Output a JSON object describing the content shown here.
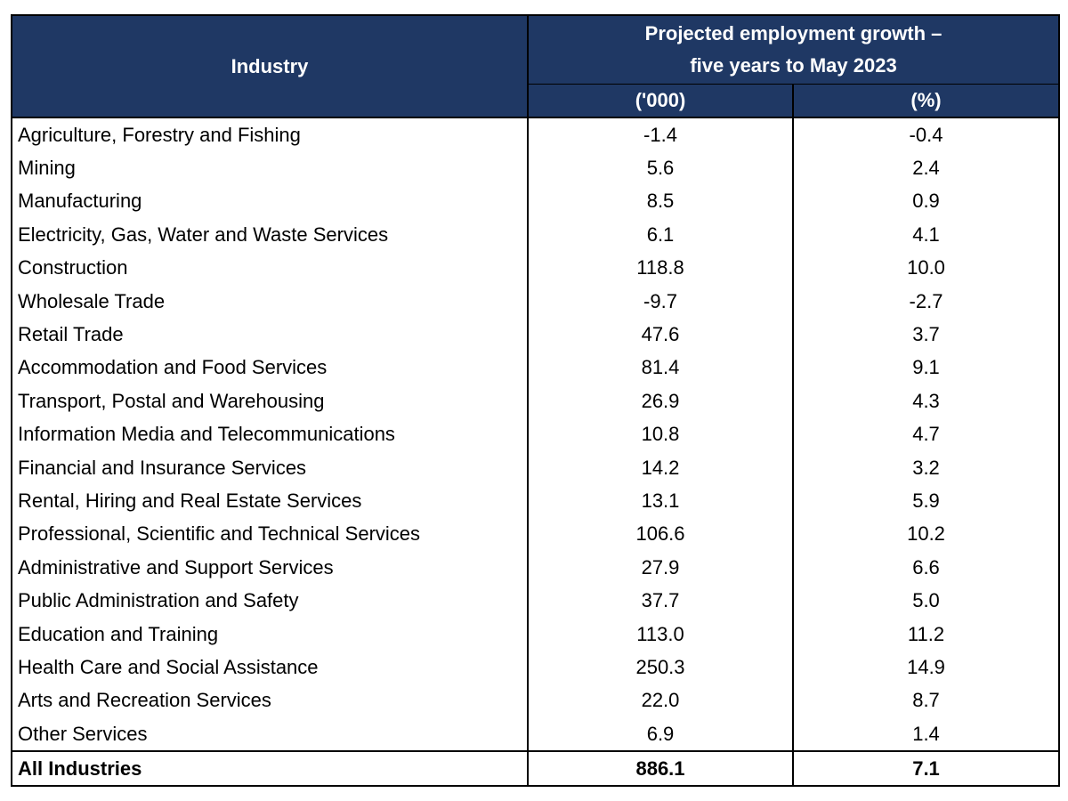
{
  "header": {
    "industry": "Industry",
    "group_line1": "Projected employment growth –",
    "group_line2": "five years to May 2023",
    "unit_thousands": "('000)",
    "unit_percent": "(%)"
  },
  "rows": [
    {
      "industry": "Agriculture, Forestry and Fishing",
      "thousands": "-1.4",
      "percent": "-0.4"
    },
    {
      "industry": "Mining",
      "thousands": "5.6",
      "percent": "2.4"
    },
    {
      "industry": "Manufacturing",
      "thousands": "8.5",
      "percent": "0.9"
    },
    {
      "industry": "Electricity, Gas, Water and Waste Services",
      "thousands": "6.1",
      "percent": "4.1"
    },
    {
      "industry": "Construction",
      "thousands": "118.8",
      "percent": "10.0"
    },
    {
      "industry": "Wholesale Trade",
      "thousands": "-9.7",
      "percent": "-2.7"
    },
    {
      "industry": "Retail Trade",
      "thousands": "47.6",
      "percent": "3.7"
    },
    {
      "industry": "Accommodation and Food Services",
      "thousands": "81.4",
      "percent": "9.1"
    },
    {
      "industry": "Transport, Postal and Warehousing",
      "thousands": "26.9",
      "percent": "4.3"
    },
    {
      "industry": "Information Media and Telecommunications",
      "thousands": "10.8",
      "percent": "4.7"
    },
    {
      "industry": "Financial and Insurance Services",
      "thousands": "14.2",
      "percent": "3.2"
    },
    {
      "industry": "Rental, Hiring and Real Estate Services",
      "thousands": "13.1",
      "percent": "5.9"
    },
    {
      "industry": "Professional, Scientific and Technical Services",
      "thousands": "106.6",
      "percent": "10.2"
    },
    {
      "industry": "Administrative and Support Services",
      "thousands": "27.9",
      "percent": "6.6"
    },
    {
      "industry": "Public Administration and Safety",
      "thousands": "37.7",
      "percent": "5.0"
    },
    {
      "industry": "Education and Training",
      "thousands": "113.0",
      "percent": "11.2"
    },
    {
      "industry": "Health Care and Social Assistance",
      "thousands": "250.3",
      "percent": "14.9"
    },
    {
      "industry": "Arts and Recreation Services",
      "thousands": "22.0",
      "percent": "8.7"
    },
    {
      "industry": "Other Services",
      "thousands": "6.9",
      "percent": "1.4"
    }
  ],
  "total": {
    "industry": "All Industries",
    "thousands": "886.1",
    "percent": "7.1"
  },
  "colors": {
    "header_bg": "#1f3864",
    "header_text": "#ffffff"
  }
}
